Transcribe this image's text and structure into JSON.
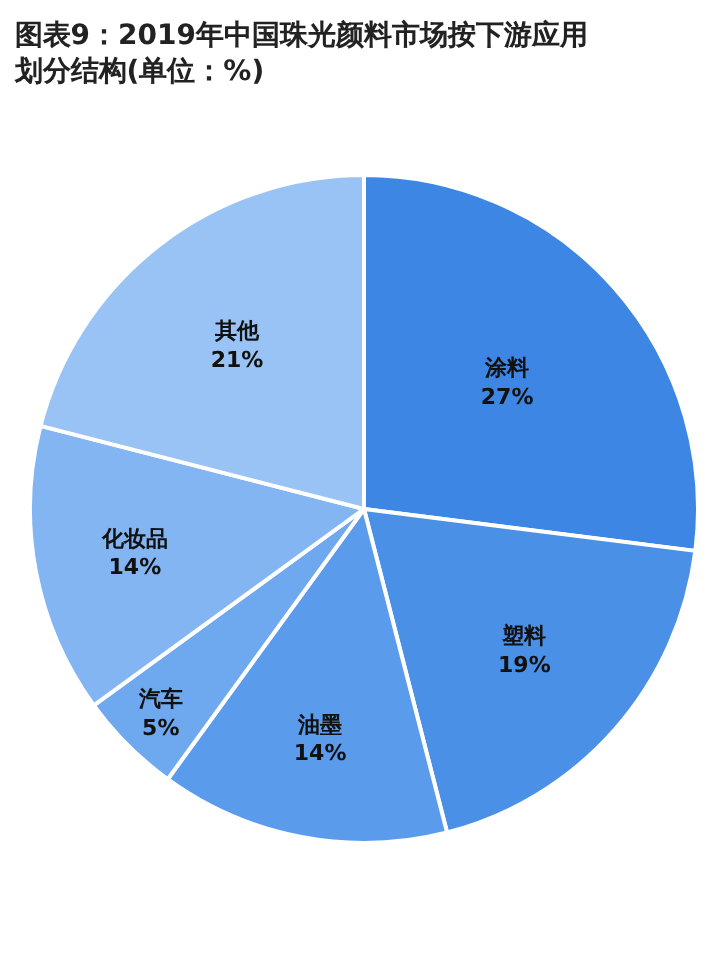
{
  "chart_data": {
    "type": "pie",
    "title": "图表9：2019年中国珠光颜料市场按下游应用划分结构(单位：%)",
    "categories": [
      "涂料",
      "塑料",
      "油墨",
      "汽车",
      "化妆品",
      "其他"
    ],
    "values": [
      27,
      19,
      14,
      5,
      14,
      21
    ],
    "value_labels": [
      "27%",
      "19%",
      "14%",
      "5%",
      "14%",
      "21%"
    ],
    "colors": [
      "#3d86e3",
      "#4b90e7",
      "#5b9beb",
      "#6ea8ef",
      "#83b5f2",
      "#99c3f5"
    ],
    "legend": false
  }
}
